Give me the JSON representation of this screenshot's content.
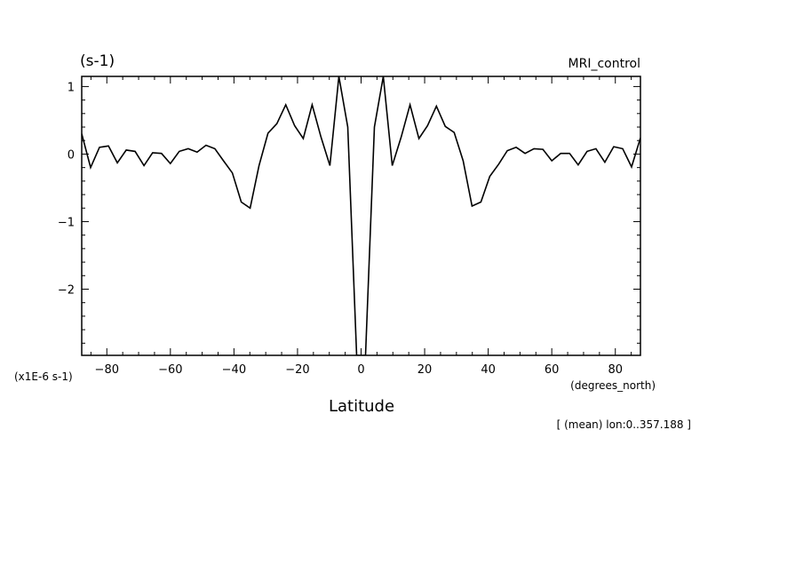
{
  "chart_data": {
    "type": "line",
    "top_left_label": "(s-1)",
    "top_right_label": "MRI_control",
    "xlabel": "Latitude",
    "x_unit_label": "(degrees_north)",
    "y_scale_label": "(x1E-6 s-1)",
    "footnote": "[ (mean) lon:0..357.188 ]",
    "xlim": [
      -87.9,
      87.9
    ],
    "ylim": [
      -2.98,
      1.15
    ],
    "x_ticks": [
      -80,
      -60,
      -40,
      -20,
      0,
      20,
      40,
      60,
      80
    ],
    "x_tick_labels": [
      "−80",
      "−60",
      "−40",
      "−20",
      "0",
      "20",
      "40",
      "60",
      "80"
    ],
    "y_ticks": [
      1,
      0,
      -1,
      -2
    ],
    "y_tick_labels": [
      "1",
      "0",
      "−1",
      "−2"
    ],
    "series": [
      {
        "x": [
          -87.9,
          -85.1,
          -82.3,
          -79.5,
          -76.7,
          -73.9,
          -71.1,
          -68.3,
          -65.6,
          -62.8,
          -60.0,
          -57.2,
          -54.4,
          -51.6,
          -48.8,
          -46.0,
          -43.3,
          -40.5,
          -37.7,
          -34.9,
          -32.1,
          -29.3,
          -26.5,
          -23.7,
          -20.9,
          -18.2,
          -15.4,
          -12.6,
          -9.8,
          -7.0,
          -4.2,
          -1.4,
          1.4,
          4.2,
          7.0,
          9.8,
          12.6,
          15.4,
          18.2,
          20.9,
          23.7,
          26.5,
          29.3,
          32.1,
          34.9,
          37.7,
          40.5,
          43.3,
          46.0,
          48.8,
          51.6,
          54.4,
          57.2,
          60.0,
          62.8,
          65.6,
          68.3,
          71.1,
          73.9,
          76.7,
          79.5,
          82.3,
          85.1,
          87.9
        ],
        "values": [
          0.3,
          -0.2,
          0.1,
          0.12,
          -0.13,
          0.06,
          0.04,
          -0.17,
          0.02,
          0.01,
          -0.14,
          0.04,
          0.08,
          0.03,
          0.13,
          0.08,
          -0.1,
          -0.28,
          -0.71,
          -0.8,
          -0.17,
          0.31,
          0.45,
          0.73,
          0.42,
          0.23,
          0.73,
          0.25,
          -0.17,
          1.15,
          0.4,
          -2.98,
          -2.98,
          0.4,
          1.15,
          -0.17,
          0.25,
          0.73,
          0.23,
          0.42,
          0.71,
          0.41,
          0.32,
          -0.1,
          -0.77,
          -0.71,
          -0.33,
          -0.15,
          0.05,
          0.1,
          0.01,
          0.08,
          0.07,
          -0.1,
          0.01,
          0.01,
          -0.16,
          0.04,
          0.08,
          -0.12,
          0.11,
          0.08,
          -0.19,
          0.24
        ]
      }
    ]
  }
}
